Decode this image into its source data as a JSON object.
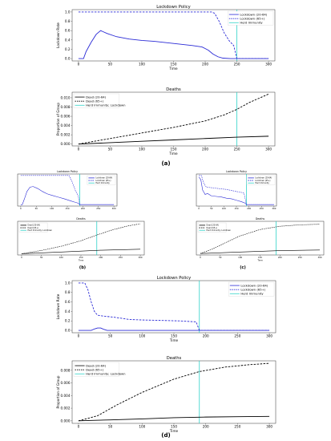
{
  "chart_data": [
    {
      "id": "a-top",
      "type": "line",
      "title": "Lockdown Policy",
      "xlabel": "Time",
      "ylabel": "Lockdown Rate",
      "xlim": [
        -10,
        310
      ],
      "ylim": [
        -0.05,
        1.05
      ],
      "xticks": [
        0,
        50,
        100,
        150,
        200,
        250,
        300
      ],
      "yticks": [
        0.0,
        0.2,
        0.4,
        0.6,
        0.8,
        1.0
      ],
      "ytick_labels": [
        "0.0",
        "0.2",
        "0.4",
        "0.6",
        "0.8",
        "1.0"
      ],
      "vline": 250,
      "legend": "top-right",
      "series": [
        {
          "name": "Lockdown (20-64)",
          "style": "solid",
          "color": "#2b2bd6",
          "x": [
            0,
            8,
            12,
            20,
            28,
            35,
            45,
            60,
            80,
            100,
            120,
            140,
            160,
            180,
            195,
            205,
            212,
            220,
            228,
            240,
            300
          ],
          "y": [
            0.0,
            0.0,
            0.15,
            0.35,
            0.52,
            0.6,
            0.54,
            0.47,
            0.42,
            0.39,
            0.37,
            0.34,
            0.31,
            0.28,
            0.25,
            0.18,
            0.1,
            0.04,
            0.01,
            0.0,
            0.0
          ]
        },
        {
          "name": "Lockdown (65+)",
          "style": "dashed",
          "color": "#2b2bd6",
          "x": [
            0,
            210,
            215,
            222,
            230,
            238,
            245,
            250,
            300
          ],
          "y": [
            1.0,
            1.0,
            0.97,
            0.8,
            0.55,
            0.38,
            0.28,
            0.0,
            0.0
          ]
        }
      ],
      "legend_entries": [
        "Lockdown (20-64)",
        "Lockdown (65+)",
        "Herd Immunity"
      ]
    },
    {
      "id": "a-bottom",
      "type": "line",
      "title": "Deaths",
      "xlabel": "Time",
      "ylabel": "Proportion of Group",
      "xlim": [
        -10,
        310
      ],
      "ylim": [
        -0.0004,
        0.0112
      ],
      "xticks": [
        0,
        50,
        100,
        150,
        200,
        250,
        300
      ],
      "yticks": [
        0.0,
        0.002,
        0.004,
        0.006,
        0.008,
        0.01
      ],
      "ytick_labels": [
        "0.000",
        "0.002",
        "0.004",
        "0.006",
        "0.008",
        "0.010"
      ],
      "vline": 250,
      "legend": "top-left",
      "series": [
        {
          "name": "Dead (20-64)",
          "style": "solid",
          "color": "#000000",
          "x": [
            0,
            50,
            100,
            150,
            200,
            250,
            300
          ],
          "y": [
            0.0,
            0.0003,
            0.0006,
            0.0009,
            0.0012,
            0.0015,
            0.0017
          ]
        },
        {
          "name": "Dead (65+)",
          "style": "dashed",
          "color": "#000000",
          "x": [
            0,
            50,
            100,
            150,
            200,
            230,
            250,
            270,
            300
          ],
          "y": [
            0.0,
            0.0012,
            0.0024,
            0.0036,
            0.005,
            0.0063,
            0.0075,
            0.009,
            0.0108
          ]
        }
      ],
      "legend_entries": [
        "Dead (20-64)",
        "Dead (65+)",
        "Herd Immunity; Lockdown"
      ]
    },
    {
      "id": "b-top",
      "type": "line",
      "title": "Lockdown Policy",
      "xlabel": "",
      "ylabel": "",
      "xlim": [
        -10,
        310
      ],
      "ylim": [
        -0.05,
        1.05
      ],
      "xticks": [
        0,
        50,
        100,
        150,
        200,
        250,
        300
      ],
      "yticks": [],
      "ytick_labels": [],
      "vline": 190,
      "legend": "top-right",
      "series": [
        {
          "style": "solid",
          "color": "#2b2bd6",
          "x": [
            0,
            5,
            12,
            20,
            30,
            40,
            55,
            70,
            85,
            100,
            120,
            140,
            160,
            175,
            185,
            190,
            300
          ],
          "y": [
            0.0,
            0.0,
            0.2,
            0.45,
            0.6,
            0.62,
            0.55,
            0.45,
            0.37,
            0.32,
            0.26,
            0.2,
            0.13,
            0.08,
            0.05,
            0.0,
            0.0
          ]
        },
        {
          "style": "dashed",
          "color": "#2b2bd6",
          "x": [
            0,
            155,
            165,
            175,
            185,
            190,
            300
          ],
          "y": [
            1.0,
            1.0,
            0.8,
            0.5,
            0.3,
            0.0,
            0.0
          ]
        }
      ],
      "legend_entries": [
        "Lockdown (20-64)",
        "Lockdown (65+)",
        "Herd Immunity"
      ]
    },
    {
      "id": "b-bottom",
      "type": "line",
      "title": "Deaths",
      "xlabel": "Time",
      "ylabel": "",
      "xlim": [
        -10,
        310
      ],
      "ylim": [
        -0.0005,
        0.013
      ],
      "xticks": [
        0,
        50,
        100,
        150,
        200,
        250,
        300
      ],
      "yticks": [],
      "ytick_labels": [],
      "vline": 190,
      "legend": "top-left",
      "series": [
        {
          "style": "solid",
          "color": "#000000",
          "x": [
            0,
            100,
            200,
            300
          ],
          "y": [
            0.0,
            0.0007,
            0.0014,
            0.0018
          ]
        },
        {
          "style": "dashed",
          "color": "#000000",
          "x": [
            0,
            50,
            100,
            150,
            190,
            230,
            270,
            300
          ],
          "y": [
            0.0,
            0.0013,
            0.003,
            0.0052,
            0.0075,
            0.0096,
            0.0112,
            0.012
          ]
        }
      ],
      "legend_entries": [
        "Dead (20-64)",
        "Dead (65+)",
        "Herd Immunity; Lockdown"
      ]
    },
    {
      "id": "c-top",
      "type": "line",
      "title": "Lockdown Policy",
      "xlabel": "",
      "ylabel": "",
      "xlim": [
        -10,
        310
      ],
      "ylim": [
        -0.05,
        1.05
      ],
      "xticks": [
        0,
        50,
        100,
        150,
        200,
        250,
        300
      ],
      "yticks": [],
      "ytick_labels": [],
      "vline": 190,
      "legend": "top-right",
      "series": [
        {
          "style": "solid",
          "color": "#2b2bd6",
          "x": [
            0,
            8,
            15,
            25,
            35,
            50,
            70,
            90,
            110,
            130,
            150,
            170,
            185,
            190,
            300
          ],
          "y": [
            0.95,
            0.85,
            0.5,
            0.35,
            0.38,
            0.3,
            0.28,
            0.26,
            0.22,
            0.2,
            0.15,
            0.1,
            0.05,
            0.0,
            0.0
          ]
        },
        {
          "style": "dashed",
          "color": "#2b2bd6",
          "x": [
            0,
            10,
            20,
            30,
            50,
            80,
            110,
            150,
            180,
            190,
            300
          ],
          "y": [
            1.0,
            1.0,
            0.72,
            0.6,
            0.58,
            0.55,
            0.52,
            0.45,
            0.4,
            0.0,
            0.0
          ]
        }
      ],
      "legend_entries": [
        "Lockdown (20-64)",
        "Lockdown (65+)",
        "Herd Immunity"
      ]
    },
    {
      "id": "c-bottom",
      "type": "line",
      "title": "Deaths",
      "xlabel": "Time",
      "ylabel": "",
      "xlim": [
        -10,
        310
      ],
      "ylim": [
        -0.0005,
        0.011
      ],
      "xticks": [
        0,
        50,
        100,
        150,
        200,
        250,
        300
      ],
      "yticks": [],
      "ytick_labels": [],
      "vline": 190,
      "legend": "top-left",
      "series": [
        {
          "style": "solid",
          "color": "#000000",
          "x": [
            0,
            100,
            200,
            300
          ],
          "y": [
            0.0,
            0.0005,
            0.001,
            0.0012
          ]
        },
        {
          "style": "dashed",
          "color": "#000000",
          "x": [
            0,
            30,
            60,
            100,
            150,
            200,
            250,
            300
          ],
          "y": [
            0.0,
            0.0015,
            0.0035,
            0.006,
            0.0082,
            0.0093,
            0.0098,
            0.01
          ]
        }
      ],
      "legend_entries": [
        "Dead (20-64)",
        "Dead (65+)",
        "Herd Immunity; Lockdown"
      ]
    },
    {
      "id": "d-top",
      "type": "line",
      "title": "Lockdown Policy",
      "xlabel": "Time",
      "ylabel": "Lockdown Rate",
      "xlim": [
        -10,
        310
      ],
      "ylim": [
        -0.05,
        1.05
      ],
      "xticks": [
        0,
        50,
        100,
        150,
        200,
        250,
        300
      ],
      "yticks": [
        0.0,
        0.2,
        0.4,
        0.6,
        0.8,
        1.0
      ],
      "ytick_labels": [
        "0.0",
        "0.2",
        "0.4",
        "0.6",
        "0.8",
        "1.0"
      ],
      "vline": 190,
      "legend": "top-right",
      "series": [
        {
          "name": "Lockdown (20-64)",
          "style": "solid",
          "color": "#2b2bd6",
          "x": [
            0,
            20,
            25,
            30,
            35,
            40,
            45,
            300
          ],
          "y": [
            0.0,
            0.0,
            0.03,
            0.05,
            0.05,
            0.02,
            0.0,
            0.0
          ]
        },
        {
          "name": "Lockdown (65+)",
          "style": "dashed",
          "color": "#2b2bd6",
          "x": [
            0,
            10,
            15,
            20,
            25,
            30,
            40,
            55,
            70,
            80,
            100,
            130,
            160,
            185,
            190,
            300
          ],
          "y": [
            1.0,
            1.0,
            0.85,
            0.6,
            0.4,
            0.32,
            0.3,
            0.28,
            0.25,
            0.23,
            0.22,
            0.21,
            0.2,
            0.18,
            0.0,
            0.0
          ]
        }
      ],
      "legend_entries": [
        "Lockdown (20-64)",
        "Lockdown (65+)",
        "Herd Immunity"
      ]
    },
    {
      "id": "d-bottom",
      "type": "line",
      "title": "Deaths",
      "xlabel": "Time",
      "ylabel": "Proportion of Group",
      "xlim": [
        -10,
        310
      ],
      "ylim": [
        -0.0004,
        0.0095
      ],
      "xticks": [
        0,
        50,
        100,
        150,
        200,
        250,
        300
      ],
      "yticks": [
        0.0,
        0.002,
        0.004,
        0.006,
        0.008
      ],
      "ytick_labels": [
        "0.000",
        "0.002",
        "0.004",
        "0.006",
        "0.008"
      ],
      "vline": 190,
      "legend": "top-left",
      "series": [
        {
          "name": "Dead (20-64)",
          "style": "solid",
          "color": "#000000",
          "x": [
            0,
            50,
            100,
            150,
            200,
            250,
            300
          ],
          "y": [
            0.0,
            0.00015,
            0.0003,
            0.0005,
            0.0006,
            0.00065,
            0.0007
          ]
        },
        {
          "name": "Dead (65+)",
          "style": "dashed",
          "color": "#000000",
          "x": [
            0,
            30,
            60,
            100,
            150,
            190,
            230,
            270,
            300
          ],
          "y": [
            0.0,
            0.0008,
            0.0025,
            0.0045,
            0.0066,
            0.0078,
            0.0085,
            0.0089,
            0.0091
          ]
        }
      ],
      "legend_entries": [
        "Dead (20-64)",
        "Dead (65+)",
        "Herd Immunity; Lockdown"
      ]
    }
  ],
  "panel_labels": {
    "a": "(a)",
    "b": "(b)",
    "c": "(c)",
    "d": "(d)"
  },
  "colors": {
    "herd_immunity": "#2fd3c8",
    "lockdown_line": "#2b2bd6",
    "death_line": "#000000"
  }
}
